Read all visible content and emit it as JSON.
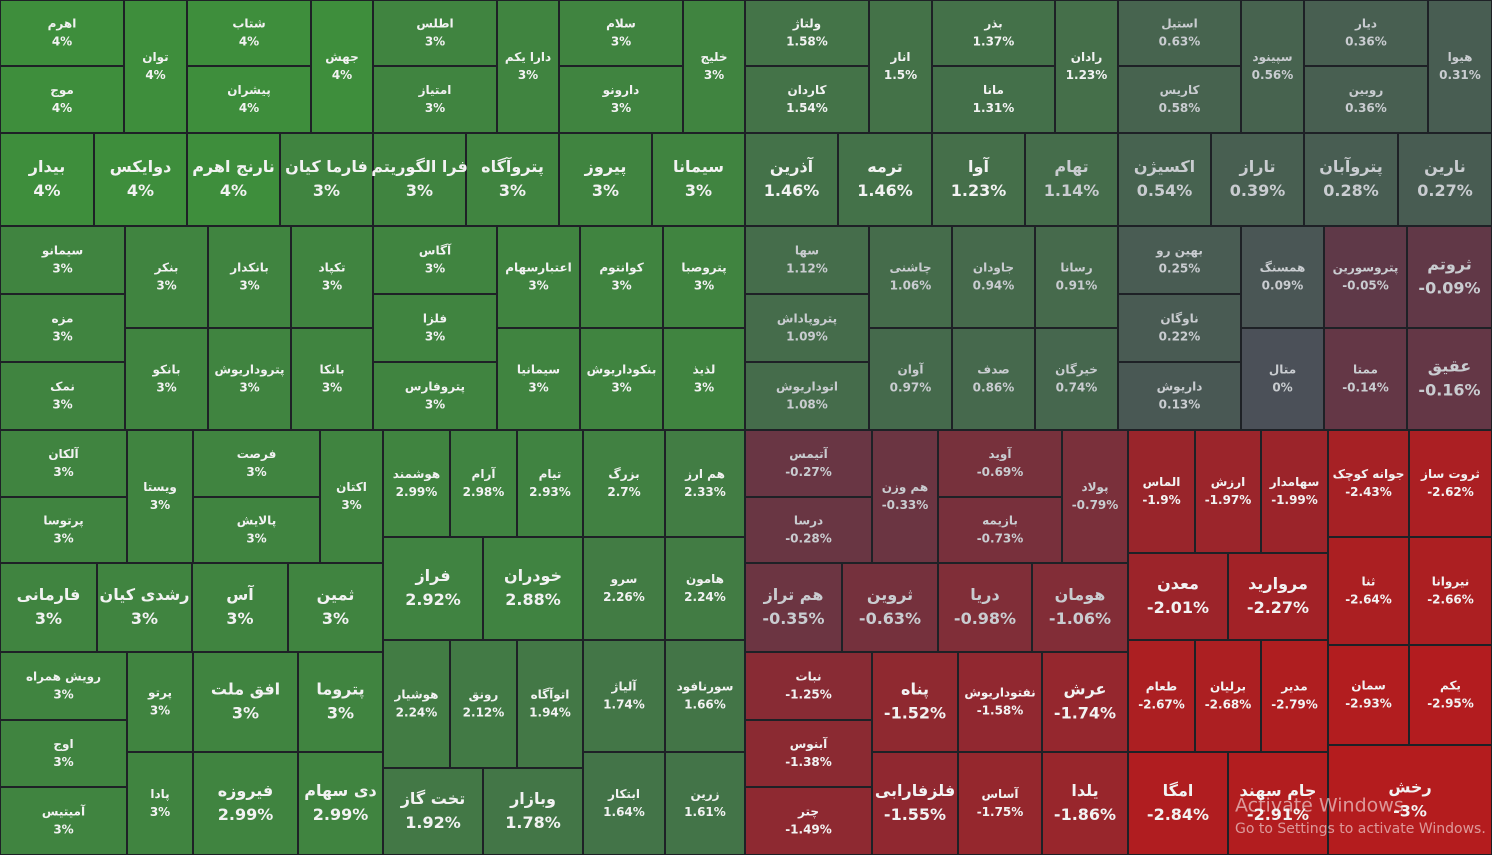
{
  "chart_data": {
    "type": "treemap",
    "categories": [
      "اهرم",
      "موج",
      "توان",
      "شتاب",
      "پیشران",
      "جهش",
      "اطلس",
      "امتیاز",
      "دارا یکم",
      "سلام",
      "دارونو",
      "خلیج",
      "بیدار",
      "دوایکس",
      "نارنج اهرم",
      "فارما کیان",
      "فرا الگوریتم",
      "پتروآگاه",
      "پیروز",
      "سیمانا",
      "ولتاژ",
      "کاردان",
      "انار",
      "بذر",
      "مانا",
      "رادان",
      "استیل",
      "کاریس",
      "سپینود",
      "دیار",
      "روبین",
      "هیوا",
      "آذرین",
      "ترمه",
      "آوا",
      "تهام",
      "اکسیژن",
      "تاراز",
      "پتروآبان",
      "نارین",
      "سیمانو",
      "مزه",
      "نمک",
      "بنکر",
      "بانکو",
      "بانکدار",
      "پتروداریوش",
      "تکپاد",
      "بانکا",
      "آگاس",
      "فلزا",
      "پتروفارس",
      "اعتبارسهام",
      "سیمانیا",
      "کوانتوم",
      "بنکوداریوش",
      "پتروصبا",
      "لذیذ",
      "سها",
      "پتروپاداش",
      "اتوداریوش",
      "چاشنی",
      "آوان",
      "جاودان",
      "صدف",
      "رسانا",
      "خیرگان",
      "بهین رو",
      "ناوگان",
      "داریوش",
      "همسنگ",
      "متال",
      "پتروسورین",
      "ممتا",
      "ثروتم",
      "عقیق",
      "آلکان",
      "پرتوسا",
      "ویستا",
      "فرصت",
      "پالایش",
      "اکتان",
      "هوشمند",
      "آرام",
      "تیام",
      "بزرگ",
      "هم ارز",
      "فراز",
      "خودران",
      "سرو",
      "هامون",
      "فارمانی",
      "رشدی کیان",
      "آس",
      "ثمین",
      "رویش همراه",
      "اوج",
      "آمیتیس",
      "پرتو",
      "پادا",
      "افق ملت",
      "فیروزه",
      "پتروما",
      "دی سهام",
      "هوشیار",
      "رونق",
      "اتوآگاه",
      "تخت گاز",
      "وبازار",
      "آلیاژ",
      "سورنافود",
      "ابتکار",
      "زرین",
      "آتیمس",
      "درسا",
      "هم وزن",
      "آوید",
      "بازیمه",
      "پولاد",
      "الماس",
      "ارزش",
      "سهامدار",
      "جوانه کوچک",
      "ثروت ساز",
      "هم تراز",
      "ثروین",
      "دریا",
      "هومان",
      "معدن",
      "مروارید",
      "ثنا",
      "نیروانا",
      "نبات",
      "آبنوس",
      "چتر",
      "پناه",
      "نفتوداریوش",
      "عرش",
      "فلزفارابی",
      "آساس",
      "یلدا",
      "طعام",
      "برلیان",
      "مدیر",
      "سمان",
      "یکم",
      "امگا",
      "جام سهند",
      "رخش"
    ],
    "values": [
      4,
      4,
      4,
      4,
      4,
      4,
      3,
      3,
      3,
      3,
      3,
      3,
      4,
      4,
      4,
      3,
      3,
      3,
      3,
      3,
      1.58,
      1.54,
      1.5,
      1.37,
      1.31,
      1.23,
      0.63,
      0.58,
      0.56,
      0.36,
      0.36,
      0.31,
      1.46,
      1.46,
      1.23,
      1.14,
      0.54,
      0.39,
      0.28,
      0.27,
      3,
      3,
      3,
      3,
      3,
      3,
      3,
      3,
      3,
      3,
      3,
      3,
      3,
      3,
      3,
      3,
      3,
      3,
      1.12,
      1.09,
      1.08,
      1.06,
      0.97,
      0.94,
      0.86,
      0.91,
      0.74,
      0.25,
      0.22,
      0.13,
      0.09,
      0,
      -0.05,
      -0.14,
      -0.09,
      -0.16,
      3,
      3,
      3,
      3,
      3,
      3,
      2.99,
      2.98,
      2.93,
      2.7,
      2.33,
      2.92,
      2.88,
      2.26,
      2.24,
      3,
      3,
      3,
      3,
      3,
      3,
      3,
      3,
      3,
      3,
      2.99,
      3,
      2.99,
      2.24,
      2.12,
      1.94,
      1.92,
      1.78,
      1.74,
      1.66,
      1.64,
      1.61,
      -0.27,
      -0.28,
      -0.33,
      -0.69,
      -0.73,
      -0.79,
      -1.9,
      -1.97,
      -1.99,
      -2.43,
      -2.62,
      -0.35,
      -0.63,
      -0.98,
      -1.06,
      -2.01,
      -2.27,
      -2.64,
      -2.66,
      -1.25,
      -1.38,
      -1.49,
      -1.52,
      -1.58,
      -1.74,
      -1.55,
      -1.75,
      -1.86,
      -2.67,
      -2.68,
      -2.79,
      -2.93,
      -2.95,
      -2.84,
      -2.91,
      -3
    ],
    "value_labels": [
      "4%",
      "4%",
      "4%",
      "4%",
      "4%",
      "4%",
      "3%",
      "3%",
      "3%",
      "3%",
      "3%",
      "3%",
      "4%",
      "4%",
      "4%",
      "3%",
      "3%",
      "3%",
      "3%",
      "3%",
      "1.58%",
      "1.54%",
      "1.5%",
      "1.37%",
      "1.31%",
      "1.23%",
      "0.63%",
      "0.58%",
      "0.56%",
      "0.36%",
      "0.36%",
      "0.31%",
      "1.46%",
      "1.46%",
      "1.23%",
      "1.14%",
      "0.54%",
      "0.39%",
      "0.28%",
      "0.27%",
      "3%",
      "3%",
      "3%",
      "3%",
      "3%",
      "3%",
      "3%",
      "3%",
      "3%",
      "3%",
      "3%",
      "3%",
      "3%",
      "3%",
      "3%",
      "3%",
      "3%",
      "3%",
      "1.12%",
      "1.09%",
      "1.08%",
      "1.06%",
      "0.97%",
      "0.94%",
      "0.86%",
      "0.91%",
      "0.74%",
      "0.25%",
      "0.22%",
      "0.13%",
      "0.09%",
      "0%",
      "-0.05%",
      "-0.14%",
      "-0.09%",
      "-0.16%",
      "3%",
      "3%",
      "3%",
      "3%",
      "3%",
      "3%",
      "2.99%",
      "2.98%",
      "2.93%",
      "2.7%",
      "2.33%",
      "2.92%",
      "2.88%",
      "2.26%",
      "2.24%",
      "3%",
      "3%",
      "3%",
      "3%",
      "3%",
      "3%",
      "3%",
      "3%",
      "3%",
      "3%",
      "2.99%",
      "3%",
      "2.99%",
      "2.24%",
      "2.12%",
      "1.94%",
      "1.92%",
      "1.78%",
      "1.74%",
      "1.66%",
      "1.64%",
      "1.61%",
      "-0.27%",
      "-0.28%",
      "-0.33%",
      "-0.69%",
      "-0.73%",
      "-0.79%",
      "-1.9%",
      "-1.97%",
      "-1.99%",
      "-2.43%",
      "-2.62%",
      "-0.35%",
      "-0.63%",
      "-0.98%",
      "-1.06%",
      "-2.01%",
      "-2.27%",
      "-2.64%",
      "-2.66%",
      "-1.25%",
      "-1.38%",
      "-1.49%",
      "-1.52%",
      "-1.58%",
      "-1.74%",
      "-1.55%",
      "-1.75%",
      "-1.86%",
      "-2.67%",
      "-2.68%",
      "-2.79%",
      "-2.93%",
      "-2.95%",
      "-2.84%",
      "-2.91%",
      "-3%"
    ]
  },
  "overlay": {
    "title": "Activate Windows",
    "subtitle": "Go to Settings to activate Windows."
  }
}
